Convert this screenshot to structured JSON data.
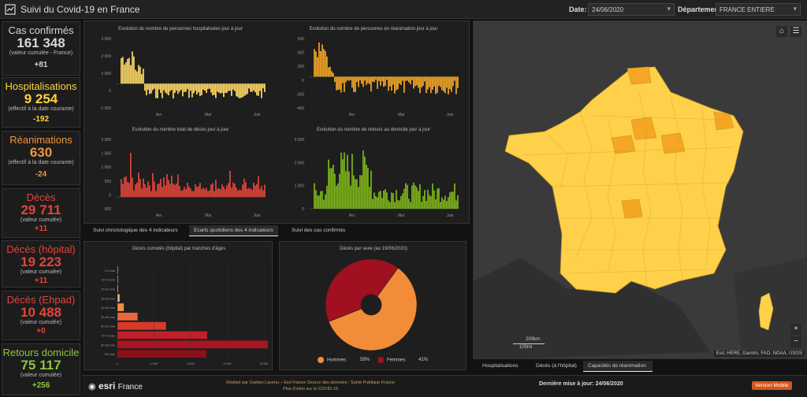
{
  "header": {
    "title": "Suivi du Covid-19 en France",
    "date_label": "Date:",
    "date_value": "24/06/2020",
    "dept_label": "Département:",
    "dept_value": "FRANCE ENTIERE"
  },
  "kpis": [
    {
      "title": "Cas confirmés",
      "value": "161 348",
      "sub": "(valeur cumulée - France)",
      "delta": "+81",
      "color": "#d6d6d6"
    },
    {
      "title": "Hospitalisations",
      "value": "9 254",
      "sub": "(effectif à la date courante)",
      "delta": "-192",
      "color": "#ffd43a"
    },
    {
      "title": "Réanimations",
      "value": "630",
      "sub": "(effectif à la date courante)",
      "delta": "-24",
      "color": "#f0953a"
    },
    {
      "title": "Décès",
      "value": "29 711",
      "sub": "(valeur cumulée)",
      "delta": "+11",
      "color": "#e1453a"
    },
    {
      "title": "Décès (hôpital)",
      "value": "19 223",
      "sub": "(valeur cumulée)",
      "delta": "+11",
      "color": "#e1453a"
    },
    {
      "title": "Décès (Ehpad)",
      "value": "10 488",
      "sub": "(valeur cumulée)",
      "delta": "+0",
      "color": "#e1453a"
    },
    {
      "title": "Retours domicile",
      "value": "75 117",
      "sub": "(valeur cumulée)",
      "delta": "+256",
      "color": "#8dc63f"
    }
  ],
  "daily_charts": {
    "x_ticks": [
      "Avr.",
      "Mai",
      "Juin"
    ],
    "hosp": {
      "title": "Evolution du nombre de personnes hospitalisées jour à jour",
      "yticks": [
        "3 000",
        "2 000",
        "1 000",
        "0",
        "-1 000"
      ],
      "color": "#ffd966"
    },
    "rea": {
      "title": "Evolution du nombre de personnes en réanimation jour à jour",
      "yticks": [
        "600",
        "400",
        "200",
        "0",
        "-200",
        "-400"
      ],
      "color": "#f5a623"
    },
    "deces": {
      "title": "Evolution du nombre total de décès jour à jour",
      "yticks": [
        "2 000",
        "1 500",
        "1 000",
        "500",
        "0",
        "-500"
      ],
      "color": "#e1453a"
    },
    "retours": {
      "title": "Evolution du nombre de retours au domicile jour à jour",
      "yticks": [
        "3 000",
        "2 000",
        "1 000",
        "0"
      ],
      "color": "#7cb518"
    }
  },
  "chart_tabs": [
    "Suivi chronologique des 4 indicateurs",
    "Ecarts quotidiens des 4 indicateurs",
    "Suivi des cas confirmés"
  ],
  "age_chart": {
    "title": "Décès cumulés (hôpital) par tranches d'âges",
    "categories": [
      "0-9 ans",
      "10-19 ans",
      "20-29 ans",
      "30-39 ans",
      "40-49 ans",
      "50-59 ans",
      "60-69 ans",
      "70-79 ans",
      "80-89 ans",
      "+90 ans"
    ],
    "xticks": [
      "0",
      "2 000",
      "4 000",
      "6 000",
      "8 000"
    ]
  },
  "sex_chart": {
    "title": "Décès par sexe (au 19/06/2020)",
    "legend": [
      {
        "label": "Hommes",
        "pct": "59%",
        "color": "#f28c38"
      },
      {
        "label": "Femmes",
        "pct": "41%",
        "color": "#a01020"
      }
    ]
  },
  "chart_data": [
    {
      "type": "bar",
      "title": "Décès cumulés (hôpital) par tranches d'âges",
      "categories": [
        "0-9 ans",
        "10-19 ans",
        "20-29 ans",
        "30-39 ans",
        "40-49 ans",
        "50-59 ans",
        "60-69 ans",
        "70-79 ans",
        "80-89 ans",
        "+90 ans"
      ],
      "values": [
        4,
        8,
        40,
        120,
        350,
        1100,
        2650,
        4900,
        8200,
        4850
      ],
      "colors": [
        "#f6b26b",
        "#f6b26b",
        "#f6b26b",
        "#f6b26b",
        "#f09040",
        "#e8683a",
        "#d83a2a",
        "#c0202a",
        "#a81622",
        "#8a101c"
      ],
      "xlim": [
        0,
        8000
      ],
      "orientation": "horizontal"
    },
    {
      "type": "pie",
      "title": "Décès par sexe (au 19/06/2020)",
      "categories": [
        "Hommes",
        "Femmes"
      ],
      "values": [
        59,
        41
      ]
    }
  ],
  "map": {
    "tabs": [
      "Hospitalisations",
      "Décès (à l'hôpital)",
      "Capacités de réanimation"
    ],
    "active_tab": 2,
    "scale_km": "200km",
    "scale_mi": "100mi",
    "attribution": "Esri, HERE, Garmin, FAO, NOAA, USGS",
    "home_icon": "home-icon",
    "list_icon": "list-icon",
    "zoom_in": "+",
    "zoom_out": "−",
    "fill_color": "#ffd04a",
    "highlight_color": "#f5a623"
  },
  "footer": {
    "brand": "esri",
    "brand_suffix": "France",
    "credits_line1": "Réalisé par Gaëtan Lavenu – Esri France     Source des données : Santé Publique France",
    "credits_line2": "Plus d'infos sur le COVID-19",
    "last_update": "Dernière mise à jour: 24/06/2020",
    "mobile_button": "Version Mobile"
  }
}
